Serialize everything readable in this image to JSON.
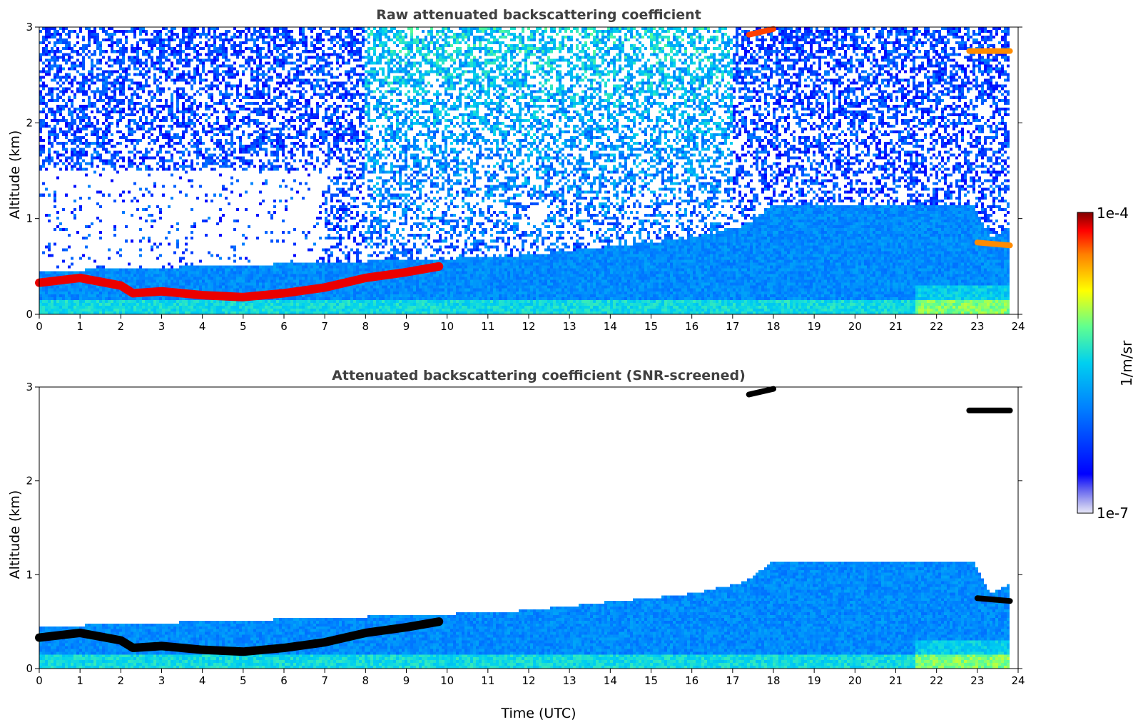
{
  "chart_data": [
    {
      "type": "heatmap",
      "title": "Raw attenuated backscattering coefficient",
      "xlabel": "",
      "ylabel": "Altitude (km)",
      "xlim": [
        0,
        24
      ],
      "ylim": [
        0,
        3
      ],
      "xticks": [
        "0",
        "1",
        "2",
        "3",
        "4",
        "5",
        "6",
        "7",
        "8",
        "9",
        "10",
        "11",
        "12",
        "13",
        "14",
        "15",
        "16",
        "17",
        "18",
        "19",
        "20",
        "21",
        "22",
        "23",
        "24"
      ],
      "yticks": [
        "0",
        "1",
        "2",
        "3"
      ],
      "layers": [
        {
          "t": [
            0,
            1,
            2,
            2.3,
            3,
            4,
            5,
            6,
            7,
            8,
            9,
            9.8
          ],
          "alt_km": [
            0.33,
            0.38,
            0.3,
            0.22,
            0.24,
            0.2,
            0.18,
            0.22,
            0.28,
            0.38,
            0.44,
            0.5
          ],
          "level": 0.95
        },
        {
          "t": [
            17.4,
            18.0
          ],
          "alt_km": [
            2.92,
            2.98
          ],
          "level": 0.9
        },
        {
          "t": [
            22.8,
            23.8
          ],
          "alt_km": [
            2.75,
            2.75
          ],
          "level": 0.85
        },
        {
          "t": [
            23.0,
            23.8
          ],
          "alt_km": [
            0.75,
            0.72
          ],
          "level": 0.85
        }
      ],
      "mixed_layer_top_km": {
        "t": [
          0,
          10,
          12,
          16,
          17.3,
          18,
          22.9,
          23.3,
          23.8
        ],
        "alt_km": [
          0.45,
          0.58,
          0.62,
          0.8,
          0.92,
          1.15,
          1.15,
          0.8,
          0.9
        ]
      }
    },
    {
      "type": "heatmap",
      "title": "Attenuated backscattering coefficient (SNR-screened)",
      "xlabel": "Time (UTC)",
      "ylabel": "Altitude (km)",
      "xlim": [
        0,
        24
      ],
      "ylim": [
        0,
        3
      ],
      "xticks": [
        "0",
        "1",
        "2",
        "3",
        "4",
        "5",
        "6",
        "7",
        "8",
        "9",
        "10",
        "11",
        "12",
        "13",
        "14",
        "15",
        "16",
        "17",
        "18",
        "19",
        "20",
        "21",
        "22",
        "23",
        "24"
      ],
      "yticks": [
        "0",
        "1",
        "2",
        "3"
      ],
      "layers": [
        {
          "t": [
            0,
            1,
            2,
            2.3,
            3,
            4,
            5,
            6,
            7,
            8,
            9,
            9.8
          ],
          "alt_km": [
            0.33,
            0.38,
            0.3,
            0.22,
            0.24,
            0.2,
            0.18,
            0.22,
            0.28,
            0.38,
            0.44,
            0.5
          ],
          "level": 1.0
        },
        {
          "t": [
            17.4,
            18.0
          ],
          "alt_km": [
            2.92,
            2.98
          ],
          "level": 1.0
        },
        {
          "t": [
            22.8,
            23.8
          ],
          "alt_km": [
            2.75,
            2.75
          ],
          "level": 1.0
        },
        {
          "t": [
            23.0,
            23.8
          ],
          "alt_km": [
            0.75,
            0.72
          ],
          "level": 1.0
        }
      ],
      "mixed_layer_top_km": {
        "t": [
          0,
          10,
          12,
          16,
          17.3,
          18,
          22.9,
          23.3,
          23.8
        ],
        "alt_km": [
          0.45,
          0.58,
          0.62,
          0.8,
          0.92,
          1.15,
          1.15,
          0.8,
          0.9
        ]
      }
    }
  ],
  "colorbar": {
    "max_label": "1e-4",
    "min_label": "1e-7",
    "unit_label": "1/m/sr",
    "colormap": "jet",
    "scale": "log"
  }
}
